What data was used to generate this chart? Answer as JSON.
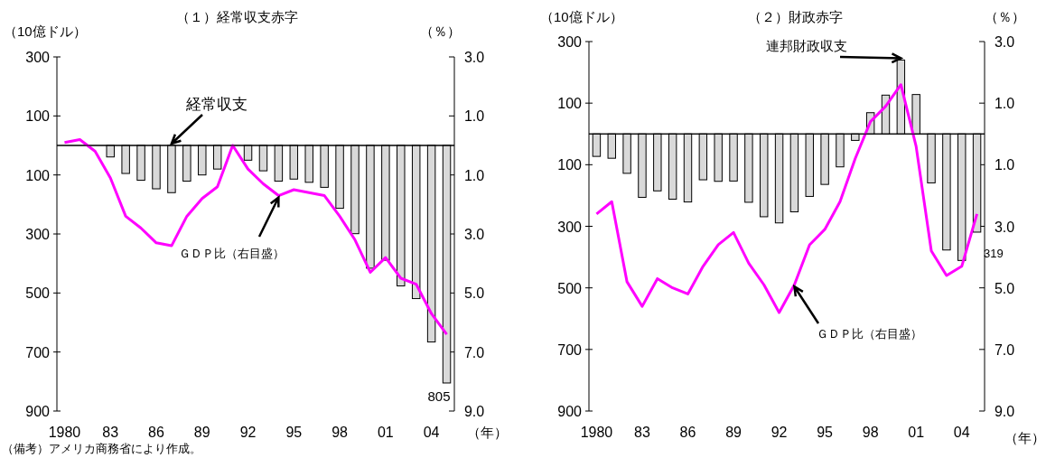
{
  "chart_data": [
    {
      "type": "bar",
      "title": "（１）経常収支赤字",
      "ylabel": "（10億ドル）",
      "y2label": "（％）",
      "xlabel": "（年）",
      "legend": false,
      "categories": [
        "1980",
        null,
        null,
        "83",
        null,
        null,
        "86",
        null,
        null,
        "89",
        null,
        null,
        "92",
        null,
        null,
        "95",
        null,
        null,
        "98",
        null,
        null,
        "01",
        null,
        null,
        "04",
        null
      ],
      "series": [
        {
          "name": "経常収支",
          "color": "#d9d9d9",
          "values": [
            null,
            null,
            null,
            -39,
            -95,
            -118,
            -147,
            -160,
            -121,
            -100,
            -80,
            null,
            -50,
            -86,
            -121,
            -114,
            -125,
            -142,
            -213,
            -299,
            -416,
            -389,
            -476,
            -519,
            -666,
            -805
          ]
        },
        {
          "name": "ＧＤＰ比（右目盛）",
          "type": "line",
          "axis": "y2",
          "color": "#ff00ff",
          "values": [
            0.1,
            0.2,
            -0.2,
            -1.1,
            -2.4,
            -2.8,
            -3.3,
            -3.4,
            -2.4,
            -1.8,
            -1.4,
            0.0,
            -0.8,
            -1.3,
            -1.7,
            -1.5,
            -1.6,
            -1.7,
            -2.4,
            -3.2,
            -4.3,
            -3.8,
            -4.5,
            -4.7,
            -5.7,
            -6.4
          ]
        }
      ],
      "ylim": [
        -900,
        300
      ],
      "yticks": [
        {
          "value": 300,
          "label": "300"
        },
        {
          "value": 100,
          "label": "100"
        },
        {
          "value": -100,
          "label": "100"
        },
        {
          "value": -300,
          "label": "300"
        },
        {
          "value": -500,
          "label": "500"
        },
        {
          "value": -700,
          "label": "700"
        },
        {
          "value": -900,
          "label": "900"
        }
      ],
      "y2lim": [
        -9,
        3
      ],
      "y2ticks": [
        {
          "value": 3,
          "label": "3.0"
        },
        {
          "value": 1,
          "label": "1.0"
        },
        {
          "value": -1,
          "label": "1.0"
        },
        {
          "value": -3,
          "label": "3.0"
        },
        {
          "value": -5,
          "label": "5.0"
        },
        {
          "value": -7,
          "label": "7.0"
        },
        {
          "value": -9,
          "label": "9.0"
        }
      ],
      "annotations": [
        "（備考）アメリカ商務省により作成。",
        {
          "text": "805",
          "y": -805
        }
      ]
    },
    {
      "type": "bar",
      "title": "（２）財政赤字",
      "ylabel": "（10億ドル）",
      "y2label": "（％）",
      "xlabel": "（年）",
      "legend": false,
      "categories": [
        "1980",
        null,
        null,
        "83",
        null,
        null,
        "86",
        null,
        null,
        "89",
        null,
        null,
        "92",
        null,
        null,
        "95",
        null,
        null,
        "98",
        null,
        null,
        "01",
        null,
        null,
        "04",
        null
      ],
      "series": [
        {
          "name": "連邦財政収支",
          "color": "#d9d9d9",
          "values": [
            -73,
            -79,
            -128,
            -206,
            -185,
            -212,
            -221,
            -149,
            -154,
            -153,
            -222,
            -269,
            -289,
            -253,
            -203,
            -164,
            -107,
            -21,
            69,
            126,
            240,
            128,
            -159,
            -377,
            -411,
            -319
          ]
        },
        {
          "name": "ＧＤＰ比（右目盛）",
          "type": "line",
          "axis": "y2",
          "color": "#ff00ff",
          "values": [
            -2.6,
            -2.2,
            -4.8,
            -5.6,
            -4.7,
            -5.0,
            -5.2,
            -4.3,
            -3.6,
            -3.2,
            -4.2,
            -4.9,
            -5.8,
            -4.9,
            -3.6,
            -3.1,
            -2.2,
            -0.8,
            0.4,
            0.9,
            1.6,
            -0.4,
            -3.8,
            -4.6,
            -4.3,
            -2.6
          ]
        }
      ],
      "ylim": [
        -900,
        300
      ],
      "yticks": [
        {
          "value": 300,
          "label": "300"
        },
        {
          "value": 100,
          "label": "100"
        },
        {
          "value": -100,
          "label": "100"
        },
        {
          "value": -300,
          "label": "300"
        },
        {
          "value": -500,
          "label": "500"
        },
        {
          "value": -700,
          "label": "700"
        },
        {
          "value": -900,
          "label": "900"
        }
      ],
      "y2lim": [
        -9,
        3
      ],
      "y2ticks": [
        {
          "value": 3,
          "label": "3.0"
        },
        {
          "value": 1,
          "label": "1.0"
        },
        {
          "value": -1,
          "label": "1.0"
        },
        {
          "value": -3,
          "label": "3.0"
        },
        {
          "value": -5,
          "label": "5.0"
        },
        {
          "value": -7,
          "label": "7.0"
        },
        {
          "value": -9,
          "label": "9.0"
        }
      ],
      "annotations": [
        "319"
      ]
    }
  ]
}
